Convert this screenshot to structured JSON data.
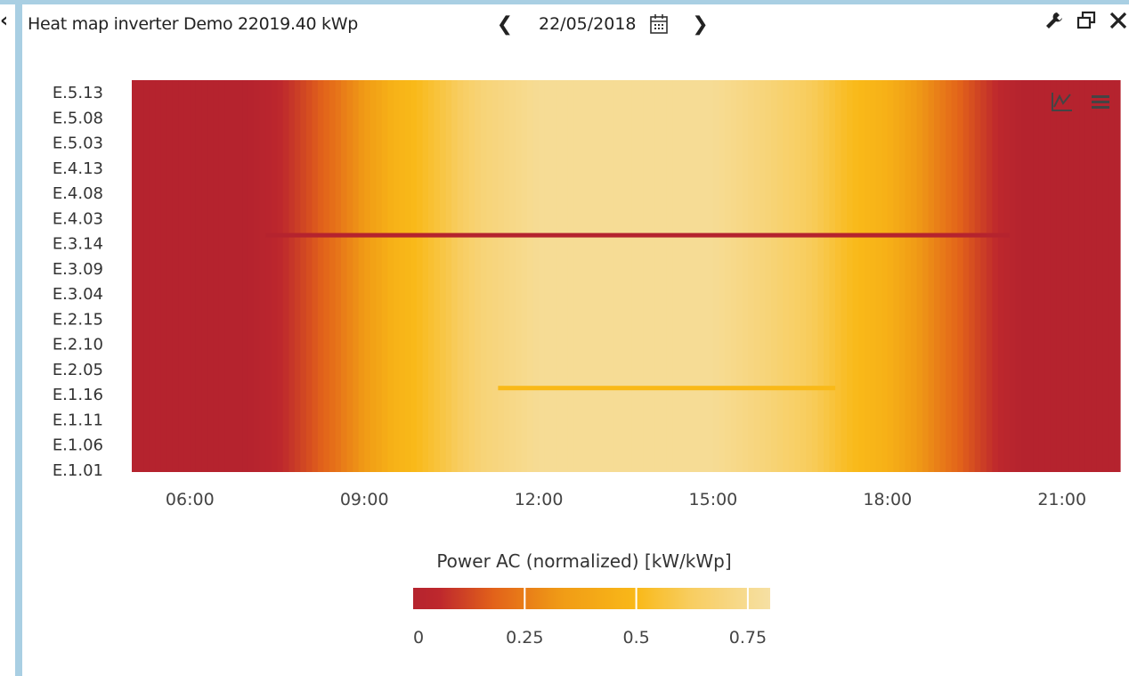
{
  "header": {
    "title": "Heat map inverter Demo 22019.40 kWp",
    "date": "22/05/2018",
    "prev_icon": "chevron-left-icon",
    "next_icon": "chevron-right-icon",
    "calendar_icon": "calendar-icon",
    "tool_icons": [
      "wrench-icon",
      "restore-window-icon",
      "close-icon"
    ]
  },
  "chart_menu_icons": [
    "line-chart-icon",
    "hamburger-menu-icon"
  ],
  "colors": {
    "low": "#b5232e",
    "mid_low": "#e2621a",
    "mid": "#f9b512",
    "high": "#f6dfa0",
    "border": "#a9cfe3"
  },
  "chart_data": {
    "type": "heatmap",
    "title": "",
    "xlabel": "",
    "ylabel": "",
    "x_ticks": [
      "06:00",
      "09:00",
      "12:00",
      "15:00",
      "18:00",
      "21:00"
    ],
    "x_tick_hours": [
      6,
      9,
      12,
      15,
      18,
      21
    ],
    "x_range_hours": [
      5.0,
      22.0
    ],
    "y_labels": [
      "E.1.01",
      "E.1.06",
      "E.1.11",
      "E.1.16",
      "E.2.05",
      "E.2.10",
      "E.2.15",
      "E.3.04",
      "E.3.09",
      "E.3.14",
      "E.4.03",
      "E.4.08",
      "E.4.13",
      "E.5.03",
      "E.5.08",
      "E.5.13"
    ],
    "inverter_count": 80,
    "profile": {
      "hours": [
        5.0,
        7.0,
        7.4,
        8.0,
        8.5,
        9.0,
        9.5,
        10.0,
        10.5,
        11.0,
        12.0,
        15.0,
        16.0,
        16.8,
        17.3,
        18.0,
        18.5,
        19.0,
        19.5,
        20.0,
        20.3,
        22.0
      ],
      "values": [
        0.0,
        0.0,
        0.03,
        0.13,
        0.22,
        0.33,
        0.46,
        0.52,
        0.6,
        0.68,
        0.76,
        0.76,
        0.68,
        0.6,
        0.52,
        0.45,
        0.33,
        0.23,
        0.13,
        0.04,
        0.0,
        0.0
      ]
    },
    "anomalies": [
      {
        "label": "E.3.14",
        "value": 0.0,
        "from_hour": 7.3,
        "to_hour": 20.1
      },
      {
        "label": "E.1.16",
        "value": 0.5,
        "from_hour": 11.3,
        "to_hour": 17.1
      }
    ],
    "legend": {
      "title": "Power AC (normalized) [kW/kWp]",
      "ticks": [
        "0",
        "0.25",
        "0.5",
        "0.75"
      ],
      "tick_values": [
        0,
        0.25,
        0.5,
        0.75
      ],
      "max": 0.8,
      "placement": "bottom-center"
    }
  }
}
